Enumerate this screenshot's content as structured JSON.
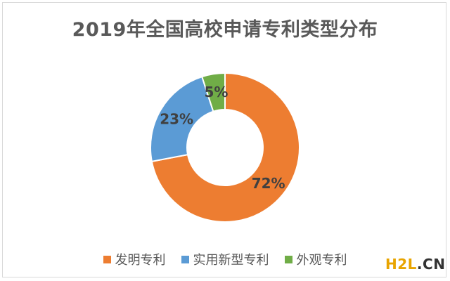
{
  "chart_data": {
    "type": "pie",
    "donut": true,
    "title": "2019年全国高校申请专利类型分布",
    "categories": [
      "发明专利",
      "实用新型专利",
      "外观专利"
    ],
    "values": [
      72,
      23,
      5
    ],
    "labels": [
      "72%",
      "23%",
      "5%"
    ],
    "colors": [
      "#ed7d31",
      "#5b9bd5",
      "#70ad47"
    ],
    "legend_position": "bottom"
  },
  "watermark": {
    "main": "H2L",
    "dot": ".",
    "tld": "CN"
  }
}
